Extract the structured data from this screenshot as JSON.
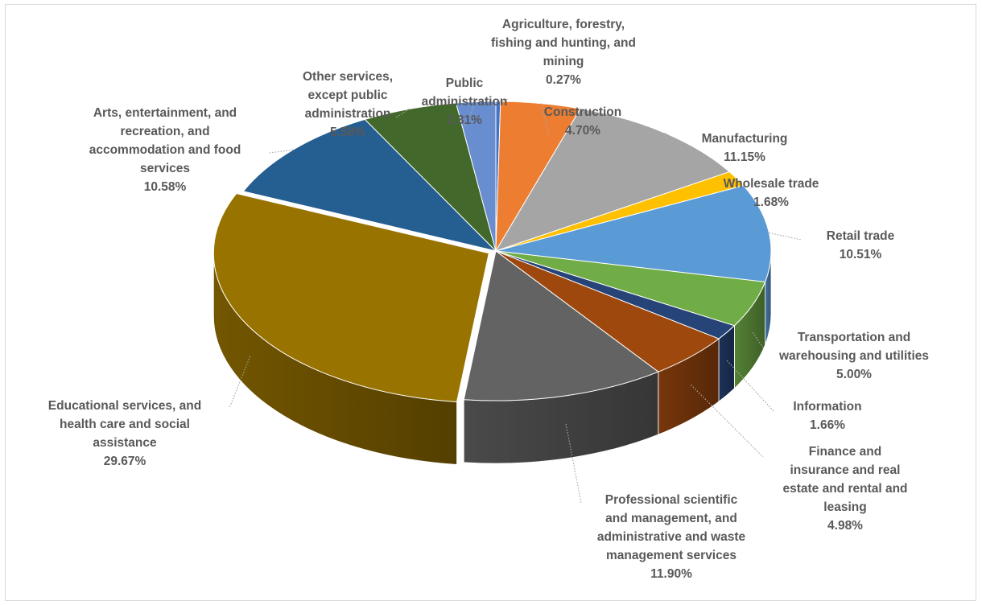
{
  "chart_data": {
    "type": "pie",
    "title": "",
    "style": "3d exploded",
    "legend": "none",
    "data_labels": "category name and percentage, outside with leader lines",
    "slices": [
      {
        "label": "Agriculture, forestry, fishing and hunting, and mining",
        "label_lines": [
          "Agriculture, forestry,",
          "fishing and hunting, and",
          "mining"
        ],
        "value": 0.27,
        "value_text": "0.27%",
        "color": "#4472c4"
      },
      {
        "label": "Construction",
        "label_lines": [
          "Construction"
        ],
        "value": 4.7,
        "value_text": "4.70%",
        "color": "#ed7d31"
      },
      {
        "label": "Manufacturing",
        "label_lines": [
          "Manufacturing"
        ],
        "value": 11.15,
        "value_text": "11.15%",
        "color": "#a5a5a5"
      },
      {
        "label": "Wholesale trade",
        "label_lines": [
          "Wholesale trade"
        ],
        "value": 1.68,
        "value_text": "1.68%",
        "color": "#ffc000"
      },
      {
        "label": "Retail trade",
        "label_lines": [
          "Retail trade"
        ],
        "value": 10.51,
        "value_text": "10.51%",
        "color": "#5b9bd5"
      },
      {
        "label": "Transportation and warehousing and utilities",
        "label_lines": [
          "Transportation and",
          "warehousing and utilities"
        ],
        "value": 5.0,
        "value_text": "5.00%",
        "color": "#70ad47"
      },
      {
        "label": "Information",
        "label_lines": [
          "Information"
        ],
        "value": 1.66,
        "value_text": "1.66%",
        "color": "#264478"
      },
      {
        "label": "Finance and insurance and real estate and rental and leasing",
        "label_lines": [
          "Finance and",
          "insurance and real",
          "estate and rental and",
          "leasing"
        ],
        "value": 4.98,
        "value_text": "4.98%",
        "color": "#9e480e"
      },
      {
        "label": "Professional scientific and management, and administrative and waste management services",
        "label_lines": [
          "Professional  scientific",
          "and management,  and",
          "administrative and waste",
          "management services"
        ],
        "value": 11.9,
        "value_text": "11.90%",
        "color": "#636363"
      },
      {
        "label": "Educational services, and health care and social assistance",
        "label_lines": [
          "Educational services, and",
          "health care and social",
          "assistance"
        ],
        "value": 29.67,
        "value_text": "29.67%",
        "color": "#997300"
      },
      {
        "label": "Arts, entertainment, and recreation, and accommodation and food services",
        "label_lines": [
          "Arts,  entertainment,  and",
          "recreation,  and",
          "accommodation and food",
          "services"
        ],
        "value": 10.58,
        "value_text": "10.58%",
        "color": "#255e91"
      },
      {
        "label": "Other services, except public administration",
        "label_lines": [
          "Other services,",
          "except public",
          "administration"
        ],
        "value": 5.58,
        "value_text": "5.58%",
        "color": "#43682b"
      },
      {
        "label": "Public administration",
        "label_lines": [
          "Public",
          "administration"
        ],
        "value": 2.31,
        "value_text": "2.31%",
        "color": "#698ed0"
      }
    ]
  }
}
